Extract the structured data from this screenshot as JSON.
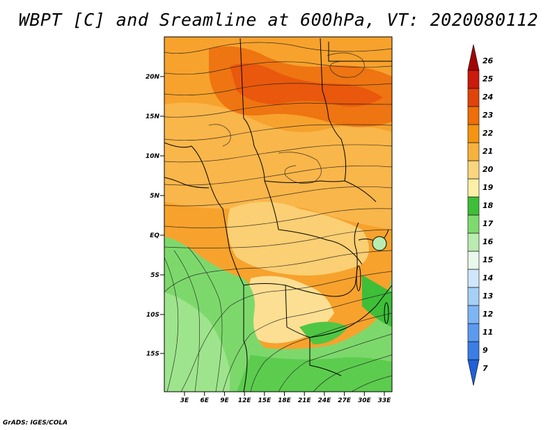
{
  "title": "WBPT [C] and Sreamline at 600hPa, VT: 2020080112",
  "credit": "GrADS: IGES/COLA",
  "map": {
    "lat_labels": [
      "20N",
      "15N",
      "10N",
      "5N",
      "EQ",
      "5S",
      "10S",
      "15S"
    ],
    "lon_labels": [
      "3E",
      "6E",
      "9E",
      "12E",
      "15E",
      "18E",
      "21E",
      "24E",
      "27E",
      "30E",
      "33E"
    ]
  },
  "colorbar": {
    "labels": [
      "7",
      "9",
      "11",
      "12",
      "13",
      "14",
      "15",
      "16",
      "17",
      "18",
      "19",
      "20",
      "21",
      "22",
      "23",
      "24",
      "25",
      "26"
    ],
    "colors": [
      "#2060d8",
      "#3a7ee6",
      "#5b9bf0",
      "#7eb6f5",
      "#a6cff8",
      "#cfe6fb",
      "#e8f8ea",
      "#b9ecb0",
      "#7fda6e",
      "#3fbe38",
      "#fcefa6",
      "#fbd57d",
      "#f7b23c",
      "#f39512",
      "#ef6f08",
      "#e0440a",
      "#cc1a0b",
      "#a30505"
    ]
  }
}
